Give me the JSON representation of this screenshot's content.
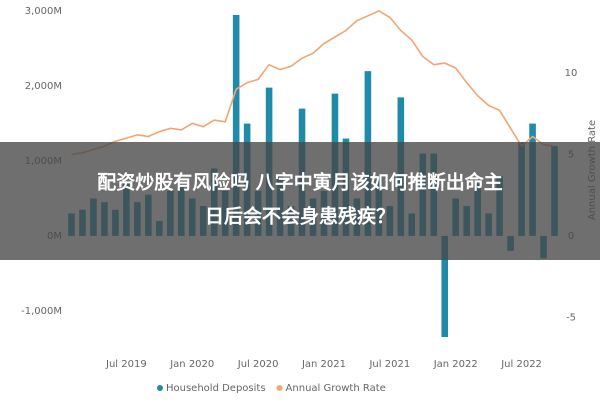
{
  "chart_data": {
    "type": "bar_line",
    "categories": [
      null,
      null,
      null,
      null,
      null,
      "Jul 2019",
      null,
      null,
      null,
      null,
      null,
      "Jan 2020",
      null,
      null,
      null,
      null,
      null,
      "Jul 2020",
      null,
      null,
      null,
      null,
      null,
      "Jan 2021",
      null,
      null,
      null,
      null,
      null,
      "Jul 2021",
      null,
      null,
      null,
      null,
      null,
      "Jan 2022",
      null,
      null,
      null,
      null,
      null,
      "Jul 2022",
      null,
      null,
      null
    ],
    "series": [
      {
        "name": "Household Deposits",
        "type": "bar",
        "color": "#1f8ba8",
        "values": [
          300,
          350,
          500,
          450,
          350,
          700,
          450,
          550,
          200,
          600,
          650,
          500,
          400,
          900,
          600,
          2950,
          1500,
          600,
          1980,
          800,
          400,
          1700,
          500,
          600,
          1900,
          1300,
          500,
          2200,
          800,
          400,
          1850,
          300,
          1100,
          1100,
          -1350,
          500,
          400,
          700,
          300,
          800,
          -200,
          1250,
          1500,
          -300,
          1200
        ]
      },
      {
        "name": "Annual Growth Rate",
        "type": "line",
        "axis": "y2",
        "color": "#f2a572",
        "values": [
          5.0,
          5.1,
          5.3,
          5.5,
          5.8,
          6.0,
          6.2,
          6.1,
          6.4,
          6.6,
          6.5,
          6.9,
          6.7,
          7.1,
          7.0,
          9.0,
          9.4,
          9.6,
          10.5,
          10.2,
          10.4,
          10.9,
          11.2,
          11.8,
          12.2,
          12.6,
          13.2,
          13.5,
          13.8,
          13.4,
          12.6,
          12.0,
          11.0,
          10.5,
          10.6,
          10.3,
          9.4,
          8.6,
          8.0,
          7.7,
          6.6,
          5.5,
          6.1,
          5.6,
          5.5
        ]
      }
    ],
    "ylim": [
      -1470,
      3070
    ],
    "yticks": [
      {
        "value": -1000,
        "label": "-1,000M"
      },
      {
        "value": 0,
        "label": "0M"
      },
      {
        "value": 1000,
        "label": "1,000M"
      },
      {
        "value": 2000,
        "label": "2,000M"
      },
      {
        "value": 3000,
        "label": "3,000M"
      }
    ],
    "y2lim": [
      -6.75,
      14.1
    ],
    "y2ticks": [
      -5,
      0,
      5,
      10
    ],
    "y2label": "Annual Growth Rate",
    "legend": "bottom"
  },
  "banner": {
    "lines": [
      "配资炒股有风险吗 八字中寅月该如何推断出命主",
      "日后会不会身患残疾？"
    ]
  }
}
